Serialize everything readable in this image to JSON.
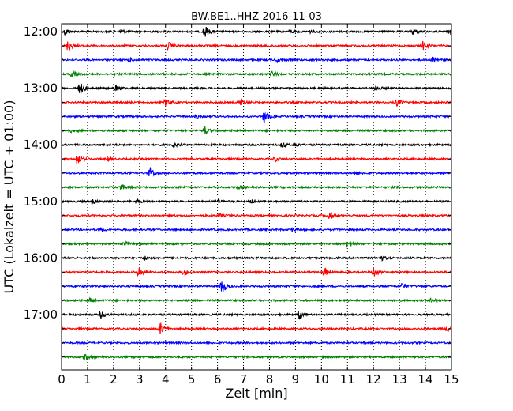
{
  "chart_data": {
    "type": "line",
    "title": "BW.BE1..HHZ 2016-11-03",
    "xlabel": "Zeit  [min]",
    "ylabel": "UTC (Lokalzeit = UTC + 01:00)",
    "xlim": [
      0,
      15
    ],
    "x_ticks": [
      "0",
      "1",
      "2",
      "3",
      "4",
      "5",
      "6",
      "7",
      "8",
      "9",
      "10",
      "11",
      "12",
      "13",
      "14",
      "15"
    ],
    "y_ticks": [
      "12:00",
      "13:00",
      "14:00",
      "15:00",
      "16:00",
      "17:00"
    ],
    "grid": "vertical dotted lines at each minute",
    "colors": [
      "#000000",
      "#ff0000",
      "#0000ff",
      "#008000"
    ],
    "series": [
      {
        "label": "12:00",
        "color": "#000000",
        "events": [
          {
            "x": 0.15,
            "a": 0.55
          },
          {
            "x": 2.3,
            "a": 0.35
          },
          {
            "x": 5.5,
            "a": 1.0
          },
          {
            "x": 8.8,
            "a": 0.25
          },
          {
            "x": 9.5,
            "a": 0.25
          },
          {
            "x": 13.5,
            "a": 0.45
          },
          {
            "x": 14.95,
            "a": 0.35
          }
        ]
      },
      {
        "label": "",
        "color": "#ff0000",
        "events": [
          {
            "x": 0.25,
            "a": 0.9
          },
          {
            "x": 4.1,
            "a": 0.6
          },
          {
            "x": 13.9,
            "a": 0.6
          }
        ]
      },
      {
        "label": "",
        "color": "#0000ff",
        "events": [
          {
            "x": 2.6,
            "a": 0.3
          },
          {
            "x": 8.3,
            "a": 0.35
          },
          {
            "x": 14.3,
            "a": 0.45
          }
        ]
      },
      {
        "label": "",
        "color": "#008000",
        "events": [
          {
            "x": 0.4,
            "a": 0.45
          },
          {
            "x": 8.1,
            "a": 0.45
          }
        ]
      },
      {
        "label": "13:00",
        "color": "#000000",
        "events": [
          {
            "x": 0.7,
            "a": 1.0
          },
          {
            "x": 2.1,
            "a": 0.4
          },
          {
            "x": 12.1,
            "a": 0.4
          }
        ]
      },
      {
        "label": "",
        "color": "#ff0000",
        "events": [
          {
            "x": 4.0,
            "a": 0.5
          },
          {
            "x": 6.9,
            "a": 0.6
          },
          {
            "x": 12.9,
            "a": 0.5
          }
        ]
      },
      {
        "label": "",
        "color": "#0000ff",
        "events": [
          {
            "x": 5.2,
            "a": 0.3
          },
          {
            "x": 7.8,
            "a": 1.0
          }
        ]
      },
      {
        "label": "",
        "color": "#008000",
        "events": [
          {
            "x": 0.3,
            "a": 0.3
          },
          {
            "x": 5.5,
            "a": 0.6
          }
        ]
      },
      {
        "label": "14:00",
        "color": "#000000",
        "events": [
          {
            "x": 4.3,
            "a": 0.35
          },
          {
            "x": 8.5,
            "a": 0.4
          },
          {
            "x": 9.0,
            "a": 0.35
          }
        ]
      },
      {
        "label": "",
        "color": "#ff0000",
        "events": [
          {
            "x": 0.6,
            "a": 1.0
          },
          {
            "x": 1.8,
            "a": 0.3
          },
          {
            "x": 8.2,
            "a": 0.3
          }
        ]
      },
      {
        "label": "",
        "color": "#0000ff",
        "events": [
          {
            "x": 3.4,
            "a": 0.8
          },
          {
            "x": 11.3,
            "a": 0.3
          }
        ]
      },
      {
        "label": "",
        "color": "#008000",
        "events": [
          {
            "x": 2.3,
            "a": 0.5
          },
          {
            "x": 6.8,
            "a": 0.3
          }
        ]
      },
      {
        "label": "15:00",
        "color": "#000000",
        "events": [
          {
            "x": 1.2,
            "a": 0.45
          },
          {
            "x": 2.9,
            "a": 0.3
          },
          {
            "x": 6.0,
            "a": 0.3
          },
          {
            "x": 7.3,
            "a": 0.25
          }
        ]
      },
      {
        "label": "",
        "color": "#ff0000",
        "events": [
          {
            "x": 6.1,
            "a": 0.25
          },
          {
            "x": 10.3,
            "a": 0.7
          }
        ]
      },
      {
        "label": "",
        "color": "#0000ff",
        "events": [
          {
            "x": 1.5,
            "a": 0.3
          },
          {
            "x": 8.9,
            "a": 0.25
          }
        ]
      },
      {
        "label": "",
        "color": "#008000",
        "events": [
          {
            "x": 2.4,
            "a": 0.35
          },
          {
            "x": 11.0,
            "a": 0.7
          }
        ]
      },
      {
        "label": "16:00",
        "color": "#000000",
        "events": [
          {
            "x": 3.2,
            "a": 0.3
          },
          {
            "x": 12.3,
            "a": 0.35
          }
        ]
      },
      {
        "label": "",
        "color": "#ff0000",
        "events": [
          {
            "x": 2.95,
            "a": 1.0
          },
          {
            "x": 4.7,
            "a": 0.6
          },
          {
            "x": 10.1,
            "a": 0.65
          },
          {
            "x": 12.0,
            "a": 0.85
          }
        ]
      },
      {
        "label": "",
        "color": "#0000ff",
        "events": [
          {
            "x": 6.15,
            "a": 1.3
          },
          {
            "x": 13.1,
            "a": 0.45
          }
        ]
      },
      {
        "label": "",
        "color": "#008000",
        "events": [
          {
            "x": 1.1,
            "a": 0.3
          },
          {
            "x": 14.2,
            "a": 0.3
          }
        ]
      },
      {
        "label": "17:00",
        "color": "#000000",
        "events": [
          {
            "x": 1.5,
            "a": 0.55
          },
          {
            "x": 9.15,
            "a": 0.7
          }
        ]
      },
      {
        "label": "",
        "color": "#ff0000",
        "events": [
          {
            "x": 3.8,
            "a": 1.1
          },
          {
            "x": 14.8,
            "a": 0.4
          }
        ]
      },
      {
        "label": "",
        "color": "#0000ff",
        "events": []
      },
      {
        "label": "",
        "color": "#008000",
        "events": [
          {
            "x": 0.9,
            "a": 0.5
          }
        ]
      }
    ]
  }
}
